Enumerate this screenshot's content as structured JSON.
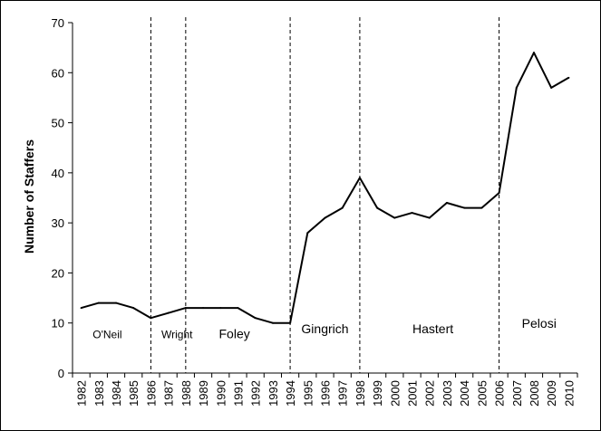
{
  "chart_data": {
    "type": "line",
    "xlabel": "",
    "ylabel": "Number of Staffers",
    "ylim": [
      0,
      70
    ],
    "yticks": [
      0,
      10,
      20,
      30,
      40,
      50,
      60,
      70
    ],
    "grid": false,
    "legend": "none",
    "line_color": "#000000",
    "categories": [
      "1982",
      "1983",
      "1984",
      "1985",
      "1986",
      "1987",
      "1988",
      "1989",
      "1990",
      "1991",
      "1992",
      "1993",
      "1994",
      "1995",
      "1996",
      "1997",
      "1998",
      "1999",
      "2000",
      "2001",
      "2002",
      "2003",
      "2004",
      "2005",
      "2006",
      "2007",
      "2008",
      "2009",
      "2010"
    ],
    "values": [
      13,
      14,
      14,
      13,
      11,
      12,
      13,
      13,
      13,
      13,
      11,
      10,
      10,
      28,
      31,
      33,
      39,
      33,
      31,
      32,
      31,
      34,
      33,
      33,
      36,
      57,
      64,
      57,
      59
    ],
    "dividers": [
      "1986",
      "1988",
      "1994",
      "1998",
      "2006"
    ],
    "periods": [
      {
        "label": "O'Neil",
        "year": 1983.5,
        "y": 7
      },
      {
        "label": "Wright",
        "year": 1987.5,
        "y": 7
      },
      {
        "label": "Foley",
        "year": 1990.8,
        "y": 7
      },
      {
        "label": "Gingrich",
        "year": 1996.0,
        "y": 8
      },
      {
        "label": "Hastert",
        "year": 2002.2,
        "y": 8
      },
      {
        "label": "Pelosi",
        "year": 2008.3,
        "y": 9
      }
    ]
  }
}
